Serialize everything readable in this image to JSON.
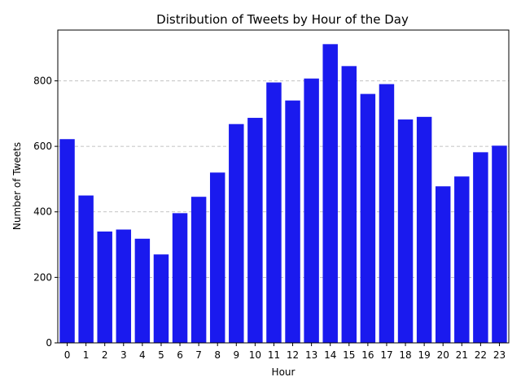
{
  "chart_data": {
    "type": "bar",
    "title": "Distribution of Tweets by Hour of the Day",
    "xlabel": "Hour",
    "ylabel": "Number of Tweets",
    "categories": [
      "0",
      "1",
      "2",
      "3",
      "4",
      "5",
      "6",
      "7",
      "8",
      "9",
      "10",
      "11",
      "12",
      "13",
      "14",
      "15",
      "16",
      "17",
      "18",
      "19",
      "20",
      "21",
      "22",
      "23"
    ],
    "values": [
      622,
      450,
      340,
      346,
      318,
      270,
      396,
      446,
      520,
      668,
      687,
      795,
      740,
      807,
      912,
      845,
      760,
      790,
      682,
      690,
      478,
      508,
      582,
      602
    ],
    "ylim": [
      0,
      955
    ],
    "yticks": [
      0,
      200,
      400,
      600,
      800
    ],
    "grid": "y-dashed",
    "bar_color": "#1a1aee"
  }
}
